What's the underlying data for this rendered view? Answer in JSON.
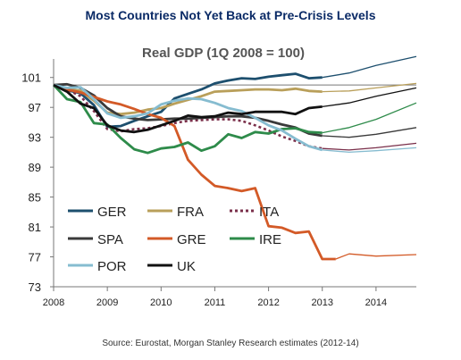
{
  "heading": "Most Countries Not Yet Back at Pre-Crisis Levels",
  "source": "Source: Eurostat, Morgan Stanley Research estimates (2012-14)",
  "chart_data": {
    "type": "line",
    "title": "Real GDP (1Q 2008 = 100)",
    "xlabel": "",
    "ylabel": "",
    "xlim": [
      2008,
      2014.75
    ],
    "ylim": [
      73,
      103
    ],
    "reference_line": 100,
    "xticks": [
      2008,
      2009,
      2010,
      2011,
      2012,
      2013,
      2014
    ],
    "yticks": [
      73,
      77,
      81,
      85,
      89,
      93,
      97,
      101
    ],
    "grid": false,
    "legend_position": "bottom-left",
    "series": [
      {
        "name": "GER",
        "color": "#1d4f6e",
        "dash": "solid",
        "actual": [
          [
            2008,
            100
          ],
          [
            2008.25,
            99.3
          ],
          [
            2008.5,
            98.9
          ],
          [
            2008.75,
            97.3
          ],
          [
            2009,
            94.4
          ],
          [
            2009.25,
            94.5
          ],
          [
            2009.5,
            95.2
          ],
          [
            2009.75,
            95.8
          ],
          [
            2010,
            96.4
          ],
          [
            2010.25,
            98.2
          ],
          [
            2010.5,
            98.8
          ],
          [
            2010.75,
            99.4
          ],
          [
            2011,
            100.2
          ],
          [
            2011.25,
            100.6
          ],
          [
            2011.5,
            100.9
          ],
          [
            2011.75,
            100.8
          ],
          [
            2012,
            101.1
          ],
          [
            2012.25,
            101.3
          ],
          [
            2012.5,
            101.5
          ],
          [
            2012.75,
            100.9
          ],
          [
            2013,
            101
          ]
        ],
        "forecast": [
          [
            2013,
            101
          ],
          [
            2013.5,
            101.6
          ],
          [
            2014,
            102.6
          ],
          [
            2014.75,
            103.8
          ]
        ]
      },
      {
        "name": "FRA",
        "color": "#b99f5a",
        "dash": "solid",
        "actual": [
          [
            2008,
            100
          ],
          [
            2008.25,
            99.5
          ],
          [
            2008.5,
            99.2
          ],
          [
            2008.75,
            97.9
          ],
          [
            2009,
            96.3
          ],
          [
            2009.25,
            96.1
          ],
          [
            2009.5,
            96.3
          ],
          [
            2009.75,
            96.7
          ],
          [
            2010,
            96.9
          ],
          [
            2010.25,
            97.5
          ],
          [
            2010.5,
            98
          ],
          [
            2010.75,
            98.5
          ],
          [
            2011,
            99.1
          ],
          [
            2011.25,
            99.2
          ],
          [
            2011.5,
            99.3
          ],
          [
            2011.75,
            99.4
          ],
          [
            2012,
            99.4
          ],
          [
            2012.25,
            99.3
          ],
          [
            2012.5,
            99.5
          ],
          [
            2012.75,
            99.2
          ],
          [
            2013,
            99.1
          ]
        ],
        "forecast": [
          [
            2013,
            99.1
          ],
          [
            2013.5,
            99.2
          ],
          [
            2014,
            99.6
          ],
          [
            2014.75,
            100.2
          ]
        ]
      },
      {
        "name": "ITA",
        "color": "#7a2f4a",
        "dash": "dotted",
        "actual": [
          [
            2008,
            100
          ],
          [
            2008.25,
            99.4
          ],
          [
            2008.5,
            98.5
          ],
          [
            2008.75,
            96.5
          ],
          [
            2009,
            94.1
          ],
          [
            2009.25,
            93.8
          ],
          [
            2009.5,
            94.1
          ],
          [
            2009.75,
            94.2
          ],
          [
            2010,
            94.5
          ],
          [
            2010.25,
            94.9
          ],
          [
            2010.5,
            95.2
          ],
          [
            2010.75,
            95.3
          ],
          [
            2011,
            95.4
          ],
          [
            2011.25,
            95.4
          ],
          [
            2011.5,
            95.2
          ],
          [
            2011.75,
            94.6
          ],
          [
            2012,
            93.9
          ],
          [
            2012.25,
            93.1
          ],
          [
            2012.5,
            92.5
          ],
          [
            2012.75,
            91.8
          ],
          [
            2013,
            91.5
          ]
        ],
        "forecast": [
          [
            2013,
            91.5
          ],
          [
            2013.5,
            91.3
          ],
          [
            2014,
            91.6
          ],
          [
            2014.75,
            92.2
          ]
        ]
      },
      {
        "name": "SPA",
        "color": "#3a3a3a",
        "dash": "solid",
        "actual": [
          [
            2008,
            100
          ],
          [
            2008.25,
            100.1
          ],
          [
            2008.5,
            99.6
          ],
          [
            2008.75,
            98.6
          ],
          [
            2009,
            96.9
          ],
          [
            2009.25,
            95.8
          ],
          [
            2009.5,
            95.5
          ],
          [
            2009.75,
            95.3
          ],
          [
            2010,
            95.4
          ],
          [
            2010.25,
            95.5
          ],
          [
            2010.5,
            95.5
          ],
          [
            2010.75,
            95.6
          ],
          [
            2011,
            95.7
          ],
          [
            2011.25,
            95.8
          ],
          [
            2011.5,
            95.8
          ],
          [
            2011.75,
            95.6
          ],
          [
            2012,
            95.2
          ],
          [
            2012.25,
            94.7
          ],
          [
            2012.5,
            94.3
          ],
          [
            2012.75,
            93.5
          ],
          [
            2013,
            93.2
          ]
        ],
        "forecast": [
          [
            2013,
            93.2
          ],
          [
            2013.5,
            93
          ],
          [
            2014,
            93.4
          ],
          [
            2014.75,
            94.3
          ]
        ]
      },
      {
        "name": "GRE",
        "color": "#d35a27",
        "dash": "solid",
        "actual": [
          [
            2008,
            100
          ],
          [
            2008.25,
            99.4
          ],
          [
            2008.5,
            99
          ],
          [
            2008.75,
            98.4
          ],
          [
            2009,
            97.8
          ],
          [
            2009.25,
            97.4
          ],
          [
            2009.5,
            96.8
          ],
          [
            2009.75,
            96.1
          ],
          [
            2010,
            95.6
          ],
          [
            2010.25,
            94.5
          ],
          [
            2010.5,
            90
          ],
          [
            2010.75,
            88
          ],
          [
            2011,
            86.5
          ],
          [
            2011.25,
            86.2
          ],
          [
            2011.5,
            85.8
          ],
          [
            2011.75,
            86.2
          ],
          [
            2012,
            81.1
          ],
          [
            2012.25,
            80.9
          ],
          [
            2012.5,
            80.2
          ],
          [
            2012.75,
            80.4
          ],
          [
            2013,
            76.7
          ],
          [
            2013.25,
            76.7
          ]
        ],
        "forecast": [
          [
            2013.25,
            76.7
          ],
          [
            2013.5,
            77.4
          ],
          [
            2014,
            77.1
          ],
          [
            2014.75,
            77.3
          ]
        ]
      },
      {
        "name": "IRE",
        "color": "#2e8b4a",
        "dash": "solid",
        "actual": [
          [
            2008,
            100
          ],
          [
            2008.25,
            98.1
          ],
          [
            2008.5,
            97.7
          ],
          [
            2008.75,
            94.9
          ],
          [
            2009,
            94.7
          ],
          [
            2009.25,
            92.9
          ],
          [
            2009.5,
            91.4
          ],
          [
            2009.75,
            90.9
          ],
          [
            2010,
            91.5
          ],
          [
            2010.25,
            91.7
          ],
          [
            2010.5,
            92.3
          ],
          [
            2010.75,
            91.2
          ],
          [
            2011,
            91.8
          ],
          [
            2011.25,
            93.4
          ],
          [
            2011.5,
            92.9
          ],
          [
            2011.75,
            93.7
          ],
          [
            2012,
            93.5
          ],
          [
            2012.25,
            94.1
          ],
          [
            2012.5,
            94.2
          ],
          [
            2012.75,
            93.7
          ],
          [
            2013,
            93.6
          ]
        ],
        "forecast": [
          [
            2013,
            93.6
          ],
          [
            2013.5,
            94.3
          ],
          [
            2014,
            95.4
          ],
          [
            2014.75,
            97.6
          ]
        ]
      },
      {
        "name": "POR",
        "color": "#86bcd0",
        "dash": "solid",
        "actual": [
          [
            2008,
            100
          ],
          [
            2008.25,
            99.6
          ],
          [
            2008.5,
            99.7
          ],
          [
            2008.75,
            98.1
          ],
          [
            2009,
            96.2
          ],
          [
            2009.25,
            95.6
          ],
          [
            2009.5,
            95.8
          ],
          [
            2009.75,
            96.2
          ],
          [
            2010,
            97.4
          ],
          [
            2010.25,
            97.9
          ],
          [
            2010.5,
            98.2
          ],
          [
            2010.75,
            98.1
          ],
          [
            2011,
            97.6
          ],
          [
            2011.25,
            96.9
          ],
          [
            2011.5,
            96.5
          ],
          [
            2011.75,
            95.6
          ],
          [
            2012,
            94.6
          ],
          [
            2012.25,
            93.9
          ],
          [
            2012.5,
            92.8
          ],
          [
            2012.75,
            91.8
          ],
          [
            2013,
            91.3
          ]
        ],
        "forecast": [
          [
            2013,
            91.3
          ],
          [
            2013.5,
            91
          ],
          [
            2014,
            91.2
          ],
          [
            2014.75,
            91.6
          ]
        ]
      },
      {
        "name": "UK",
        "color": "#111111",
        "dash": "solid",
        "actual": [
          [
            2008,
            100
          ],
          [
            2008.25,
            99.1
          ],
          [
            2008.5,
            97.5
          ],
          [
            2008.75,
            96.9
          ],
          [
            2009,
            94.6
          ],
          [
            2009.25,
            93.9
          ],
          [
            2009.5,
            93.7
          ],
          [
            2009.75,
            94
          ],
          [
            2010,
            94.6
          ],
          [
            2010.25,
            95.2
          ],
          [
            2010.5,
            95.9
          ],
          [
            2010.75,
            95.7
          ],
          [
            2011,
            95.8
          ],
          [
            2011.25,
            96.3
          ],
          [
            2011.5,
            96.1
          ],
          [
            2011.75,
            96.4
          ],
          [
            2012,
            96.4
          ],
          [
            2012.25,
            96.4
          ],
          [
            2012.5,
            96.1
          ],
          [
            2012.75,
            96.9
          ],
          [
            2013,
            97.1
          ]
        ],
        "forecast": [
          [
            2013,
            97.1
          ],
          [
            2013.5,
            97.6
          ],
          [
            2014,
            98.5
          ],
          [
            2014.75,
            99.6
          ]
        ]
      }
    ]
  }
}
